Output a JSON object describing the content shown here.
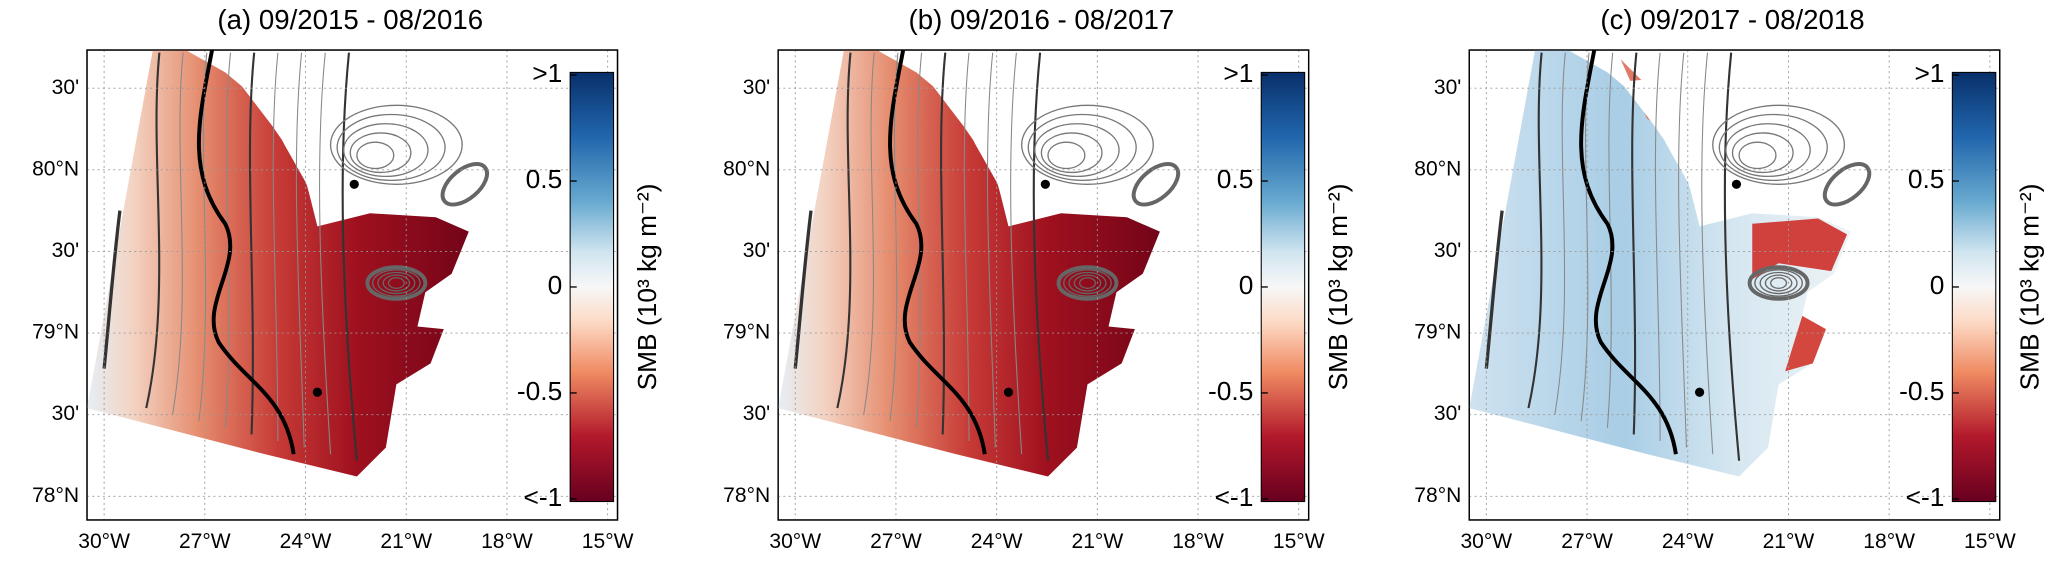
{
  "panels": [
    {
      "title": "(a) 09/2015 - 08/2016",
      "scheme": "red"
    },
    {
      "title": "(b) 09/2016 - 08/2017",
      "scheme": "red"
    },
    {
      "title": "(c) 09/2017 - 08/2018",
      "scheme": "blue"
    }
  ],
  "lon_ticks": [
    {
      "value": -30,
      "label": "30°W"
    },
    {
      "value": -27,
      "label": "27°W"
    },
    {
      "value": -24,
      "label": "24°W"
    },
    {
      "value": -21,
      "label": "21°W"
    },
    {
      "value": -18,
      "label": "18°W"
    },
    {
      "value": -15,
      "label": "15°W"
    }
  ],
  "lat_ticks": [
    {
      "value": 80.5,
      "label": "30'"
    },
    {
      "value": 80,
      "label": "80°N"
    },
    {
      "value": 79.5,
      "label": "30'"
    },
    {
      "value": 79,
      "label": "79°N"
    },
    {
      "value": 78.5,
      "label": "30'"
    },
    {
      "value": 78,
      "label": "78°N"
    }
  ],
  "colorbar": {
    "label": "SMB (10³ kg m⁻²)",
    "ticks": [
      {
        "value": 1,
        "label": ">1"
      },
      {
        "value": 0.5,
        "label": "0.5"
      },
      {
        "value": 0,
        "label": "0"
      },
      {
        "value": -0.5,
        "label": "-0.5"
      },
      {
        "value": -1,
        "label": "<-1"
      }
    ]
  }
}
